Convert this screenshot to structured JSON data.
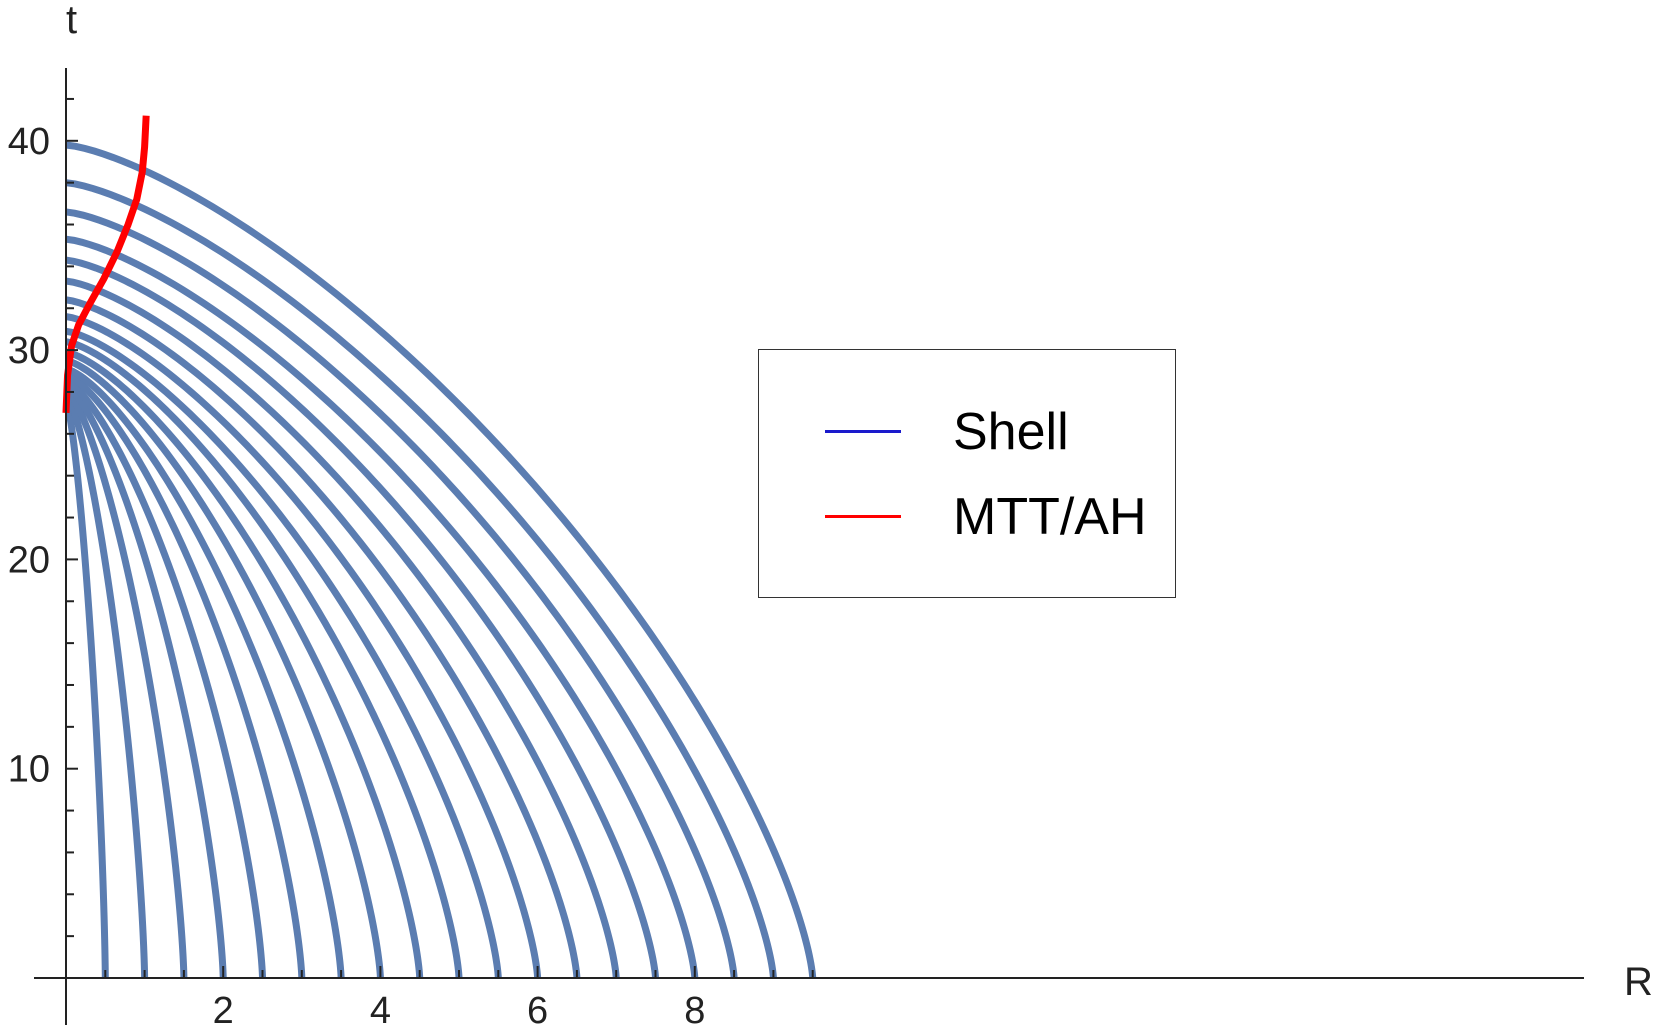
{
  "chart_data": {
    "type": "line",
    "xlabel": "R",
    "ylabel": "t",
    "xlim": [
      0,
      9.5
    ],
    "ylim": [
      0,
      42
    ],
    "x_ticks": [
      2,
      4,
      6,
      8
    ],
    "y_ticks": [
      10,
      20,
      30,
      40
    ],
    "grid": false,
    "legend_position": "center-right",
    "colors": {
      "shell": "#5b7db1",
      "mtt": "#ff0000",
      "legend_shell": "#1a1acc"
    },
    "legend": [
      {
        "label": "Shell",
        "color": "#1a1acc"
      },
      {
        "label": "MTT/AH",
        "color": "#ff0000"
      }
    ],
    "series": [
      {
        "name": "Shell",
        "shells": [
          {
            "R0": 0.5,
            "t_top": 27.6
          },
          {
            "R0": 1.0,
            "t_top": 27.9
          },
          {
            "R0": 1.5,
            "t_top": 28.1
          },
          {
            "R0": 2.0,
            "t_top": 28.3
          },
          {
            "R0": 2.5,
            "t_top": 28.5
          },
          {
            "R0": 3.0,
            "t_top": 28.8
          },
          {
            "R0": 3.5,
            "t_top": 29.1
          },
          {
            "R0": 4.0,
            "t_top": 29.5
          },
          {
            "R0": 4.5,
            "t_top": 29.9
          },
          {
            "R0": 5.0,
            "t_top": 30.4
          },
          {
            "R0": 5.5,
            "t_top": 30.9
          },
          {
            "R0": 6.0,
            "t_top": 31.6
          },
          {
            "R0": 6.5,
            "t_top": 32.4
          },
          {
            "R0": 7.0,
            "t_top": 33.3
          },
          {
            "R0": 7.5,
            "t_top": 34.3
          },
          {
            "R0": 8.0,
            "t_top": 35.3
          },
          {
            "R0": 8.5,
            "t_top": 36.6
          },
          {
            "R0": 9.0,
            "t_top": 38.0
          },
          {
            "R0": 9.5,
            "t_top": 39.8
          }
        ]
      },
      {
        "name": "MTT/AH",
        "x": [
          0.0,
          0.02,
          0.07,
          0.16,
          0.3,
          0.48,
          0.65,
          0.79,
          0.9,
          0.97,
          1.0,
          1.02
        ],
        "y": [
          27.0,
          28.8,
          30.2,
          31.2,
          32.2,
          33.4,
          34.7,
          36.0,
          37.2,
          38.5,
          39.7,
          41.2
        ]
      }
    ]
  }
}
